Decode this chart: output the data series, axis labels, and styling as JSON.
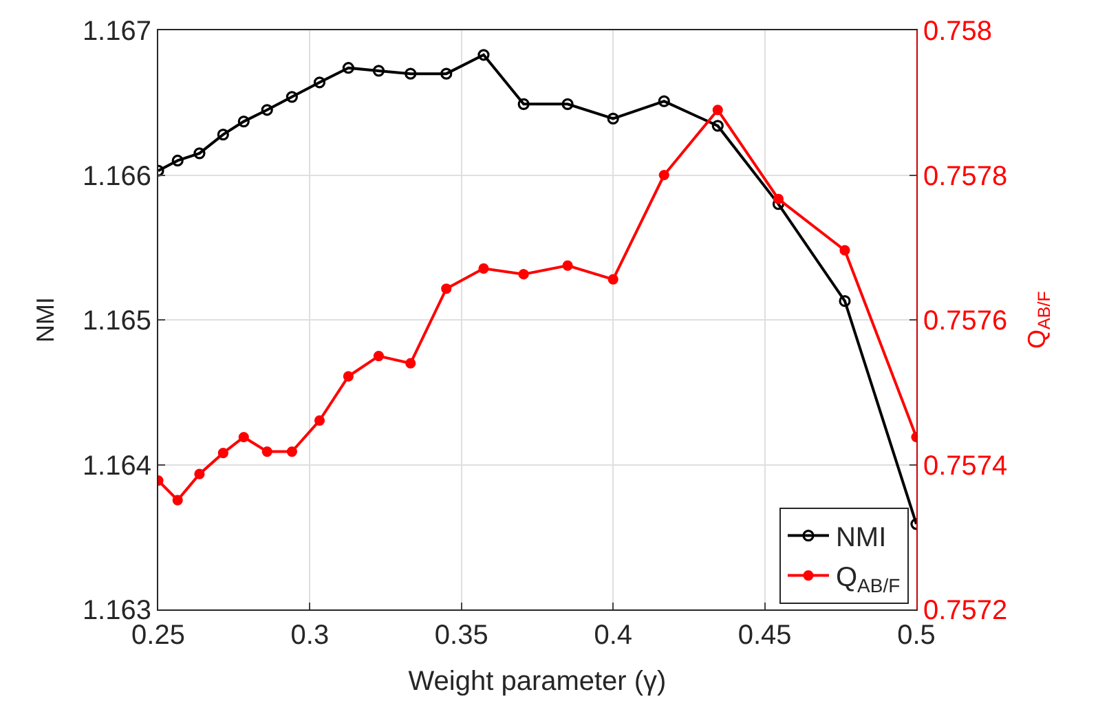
{
  "chart_data": {
    "type": "line",
    "xlabel": "Weight parameter (γ)",
    "ylabel": "NMI",
    "y2label": "Q$_{AB/F}$",
    "x": [
      0.25,
      0.2564,
      0.2636,
      0.2714,
      0.2782,
      0.2859,
      0.2941,
      0.3032,
      0.3127,
      0.3227,
      0.3332,
      0.345,
      0.3573,
      0.3705,
      0.385,
      0.4,
      0.4168,
      0.4345,
      0.4545,
      0.4764,
      0.5
    ],
    "series": [
      {
        "name": "NMI",
        "color": "#000000",
        "values": [
          1.16603,
          1.1661,
          1.16615,
          1.16628,
          1.16637,
          1.16645,
          1.16654,
          1.16664,
          1.16674,
          1.16672,
          1.1667,
          1.1667,
          1.16683,
          1.16649,
          1.16649,
          1.16639,
          1.16651,
          1.16634,
          1.1658,
          1.16513,
          1.16359
        ]
      },
      {
        "name": "Q$_{AB/F}$",
        "color": "#ff0000",
        "axis": "y2",
        "values": [
          0.757378,
          0.757351,
          0.757387,
          0.757416,
          0.757438,
          0.757418,
          0.757418,
          0.757461,
          0.757522,
          0.75755,
          0.75754,
          0.757643,
          0.757671,
          0.757663,
          0.757675,
          0.757656,
          0.7578,
          0.75789,
          0.757767,
          0.757696,
          0.757438
        ]
      }
    ],
    "xlim": [
      0.25,
      0.5
    ],
    "xticks": [
      0.25,
      0.3,
      0.35,
      0.4,
      0.45,
      0.5
    ],
    "ylim": [
      1.163,
      1.167
    ],
    "yticks": [
      1.163,
      1.164,
      1.165,
      1.166,
      1.167
    ],
    "y2lim": [
      0.7572,
      0.758
    ],
    "y2ticks": [
      0.7572,
      0.7574,
      0.7576,
      0.7578,
      0.758
    ],
    "grid": true,
    "legend": "bottom right",
    "marker": "circle",
    "line_style": "solid"
  }
}
